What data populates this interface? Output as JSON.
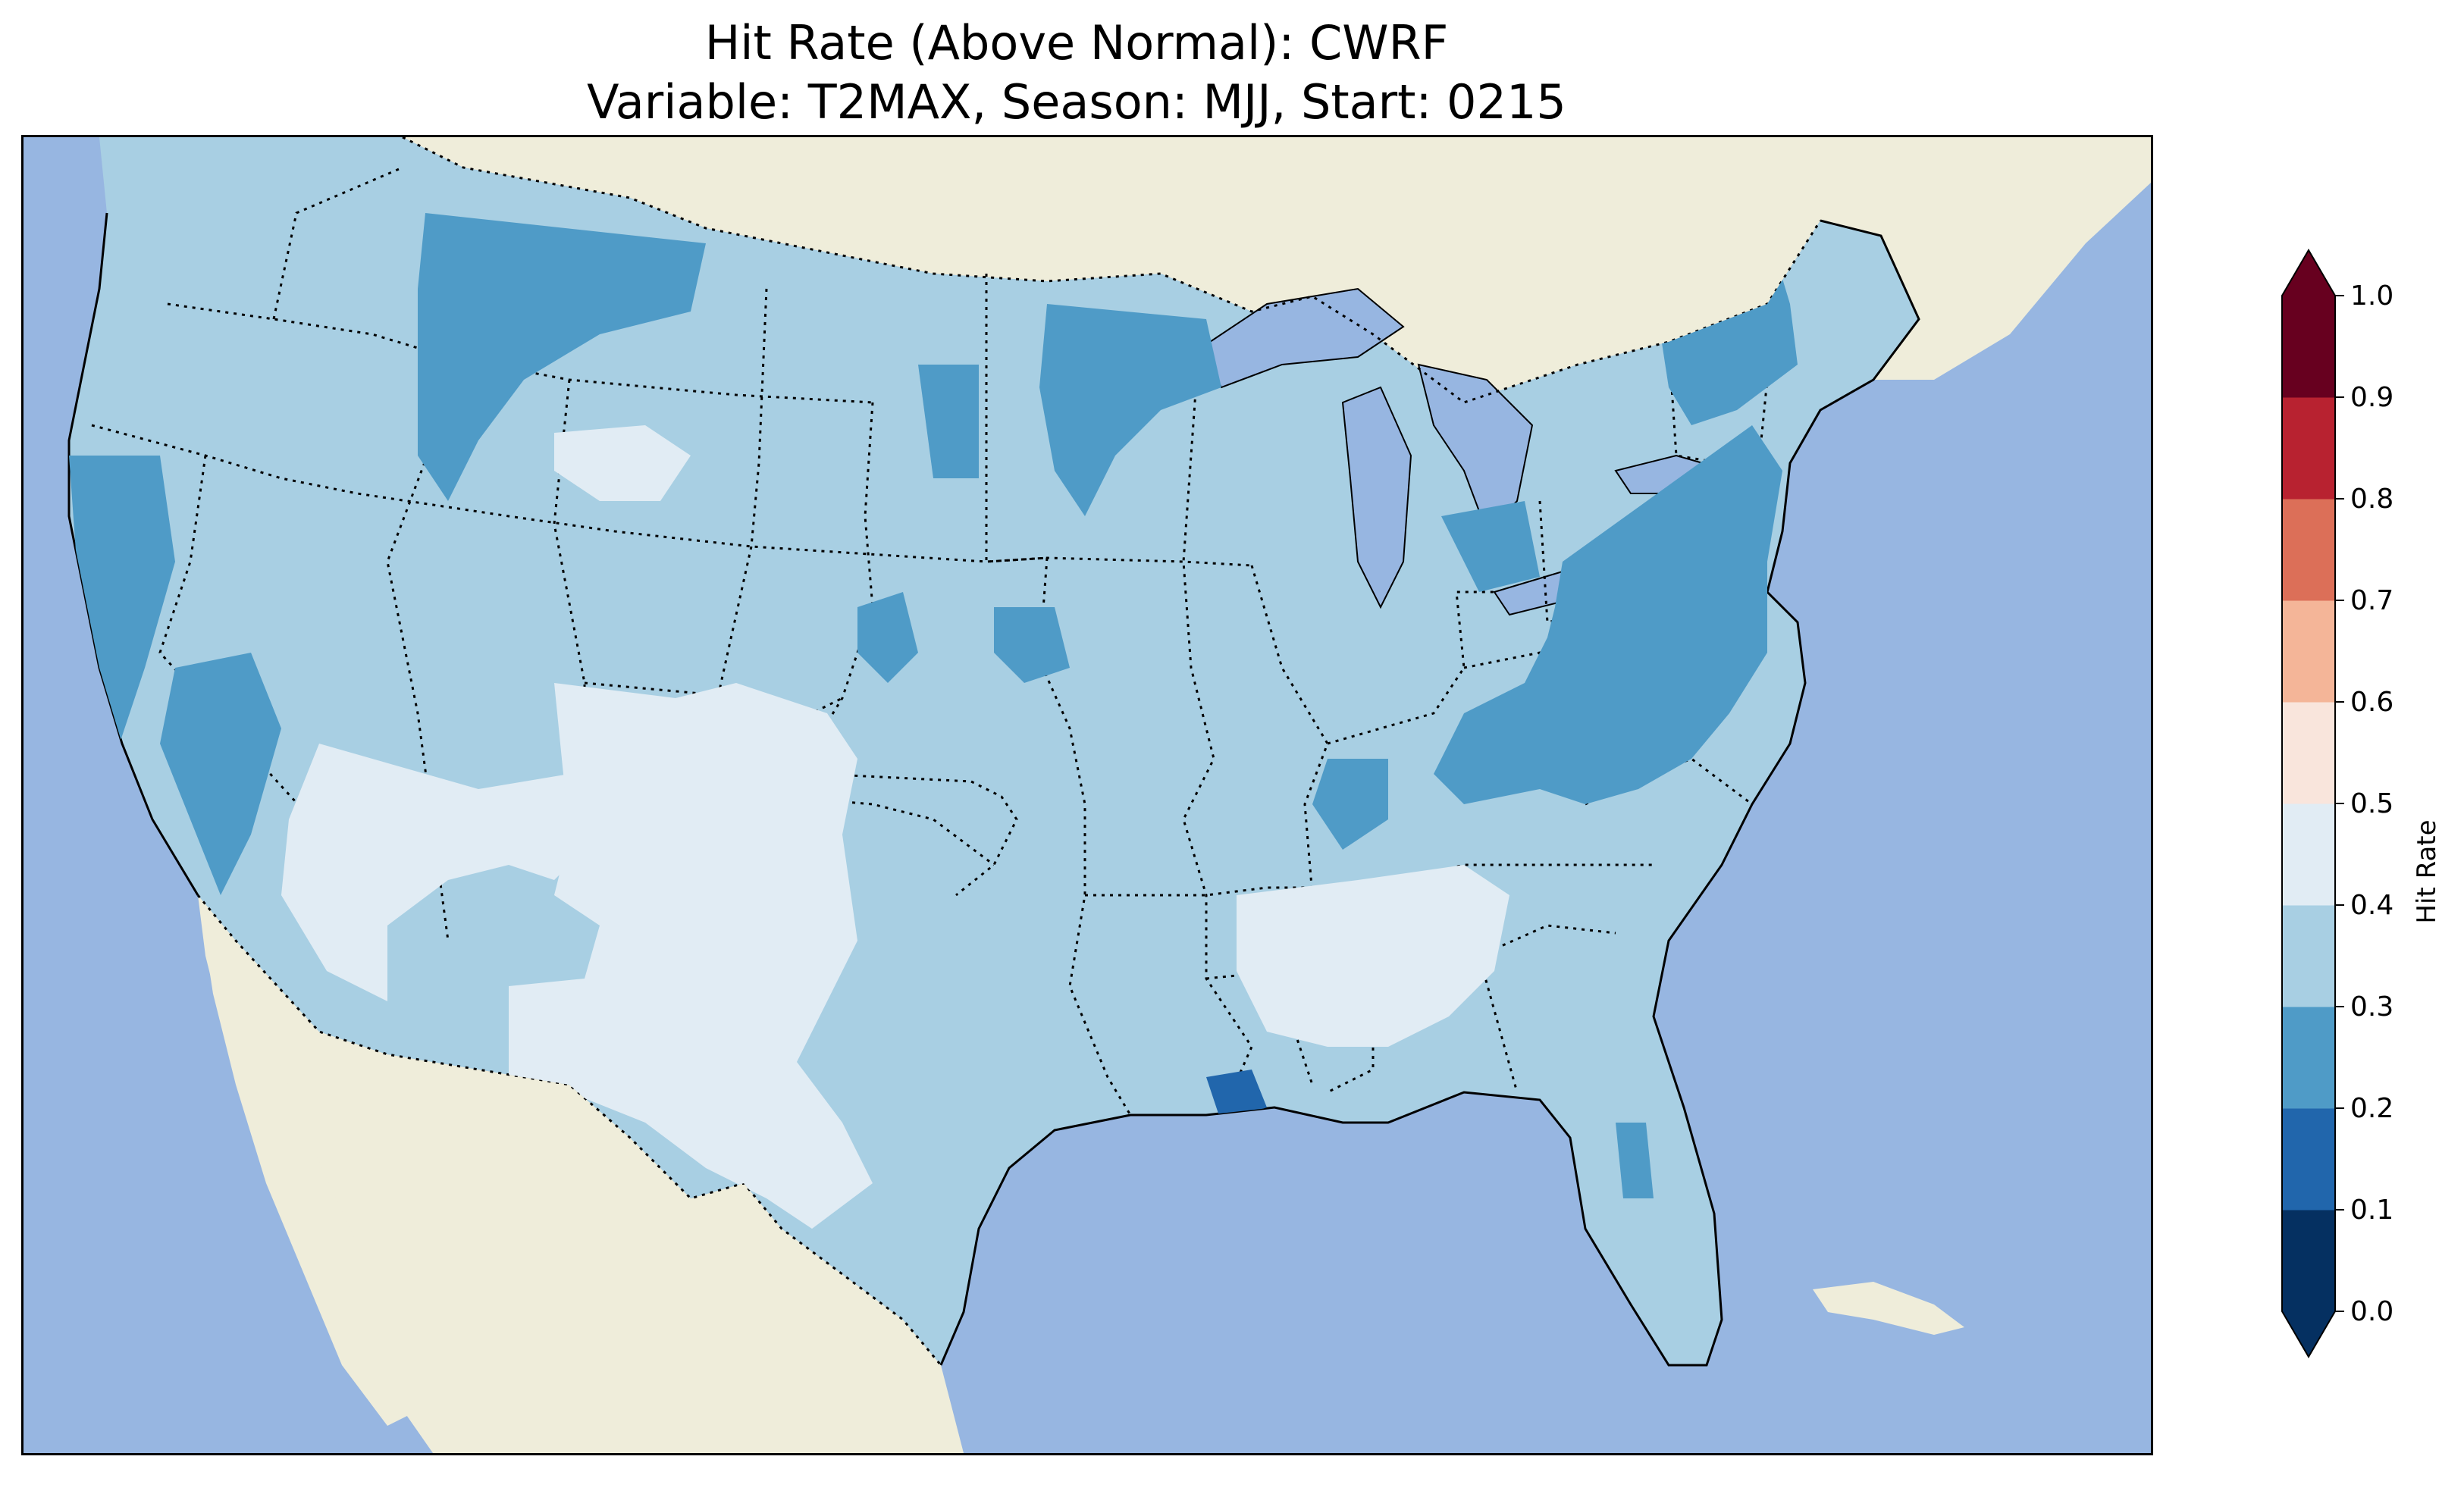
{
  "title": {
    "line1": "Hit Rate (Above Normal): CWRF",
    "line2": "Variable: T2MAX, Season: MJJ, Start: 0215"
  },
  "colorbar": {
    "label": "Hit Rate",
    "ticks": [
      "0.0",
      "0.1",
      "0.2",
      "0.3",
      "0.4",
      "0.5",
      "0.6",
      "0.7",
      "0.8",
      "0.9",
      "1.0"
    ],
    "bins": [
      {
        "range": [
          0.0,
          0.1
        ],
        "color": "#053061"
      },
      {
        "range": [
          0.1,
          0.2
        ],
        "color": "#2166ac"
      },
      {
        "range": [
          0.2,
          0.3
        ],
        "color": "#4f9bc7"
      },
      {
        "range": [
          0.3,
          0.4
        ],
        "color": "#a8cfe3"
      },
      {
        "range": [
          0.4,
          0.5
        ],
        "color": "#e1ecf4"
      },
      {
        "range": [
          0.5,
          0.6
        ],
        "color": "#f9e5dc"
      },
      {
        "range": [
          0.6,
          0.7
        ],
        "color": "#f4b598"
      },
      {
        "range": [
          0.7,
          0.8
        ],
        "color": "#dc6f58"
      },
      {
        "range": [
          0.8,
          0.9
        ],
        "color": "#b82230"
      },
      {
        "range": [
          0.9,
          1.0
        ],
        "color": "#67001f"
      }
    ],
    "extend": "both"
  },
  "map": {
    "ocean_color": "#97b6e1",
    "land_color": "#efedda",
    "borders": "dotted state and country boundaries, solid coastlines",
    "regions": [
      {
        "area": "contiguous United States (base)",
        "hit_rate_bin": "0.3-0.4"
      },
      {
        "area": "Pacific Northwest / northern Rockies",
        "hit_rate_bin": "0.2-0.3"
      },
      {
        "area": "northern California coast and Sierra",
        "hit_rate_bin": "0.2-0.3"
      },
      {
        "area": "Upper Midwest / Great Lakes",
        "hit_rate_bin": "0.2-0.3"
      },
      {
        "area": "Mid-Atlantic and Northeast",
        "hit_rate_bin": "0.2-0.3"
      },
      {
        "area": "Desert Southwest",
        "hit_rate_bin": "0.4-0.5"
      },
      {
        "area": "Texas and New Mexico",
        "hit_rate_bin": "0.4-0.5"
      },
      {
        "area": "Deep South (MS/AL/GA)",
        "hit_rate_bin": "0.4-0.5"
      },
      {
        "area": "southern Louisiana coast",
        "hit_rate_bin": "0.1-0.2"
      }
    ]
  }
}
